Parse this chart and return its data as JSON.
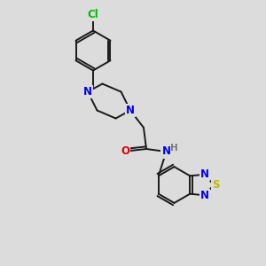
{
  "bg_color": "#dcdcdc",
  "bond_color": "#1a1a1a",
  "bond_width": 1.4,
  "atom_colors": {
    "C": "#1a1a1a",
    "N": "#0000ee",
    "O": "#dd0000",
    "S": "#bbbb00",
    "Cl": "#00bb00",
    "H": "#777777"
  },
  "font_size": 8.5
}
